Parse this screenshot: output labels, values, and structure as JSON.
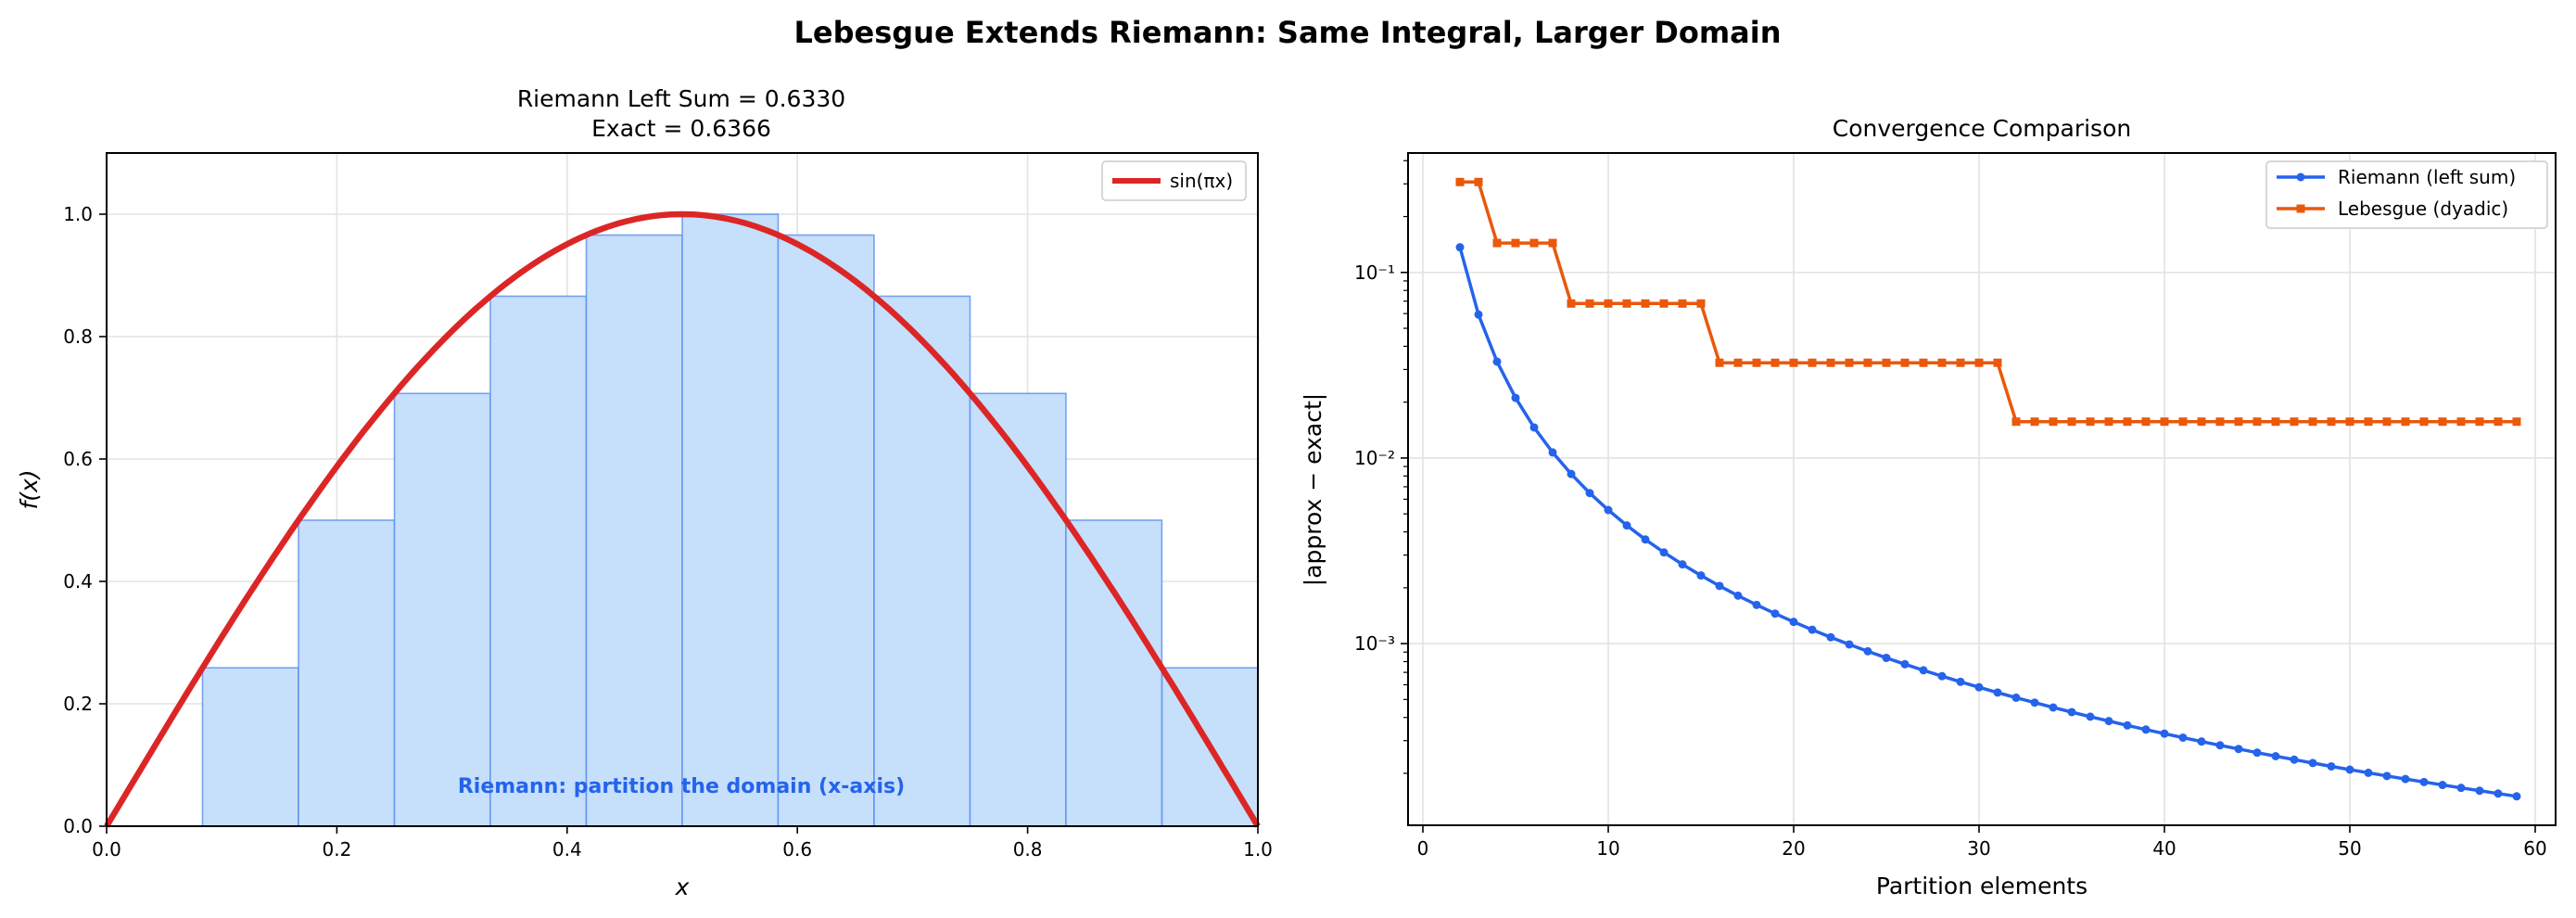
{
  "suptitle": "Lebesgue Extends Riemann: Same Integral, Larger Domain",
  "chart_data": [
    {
      "type": "bar",
      "title_line1": "Riemann Left Sum $=0.6330$",
      "title_line1_text": "Riemann Left Sum  = 0.6330",
      "title_line2_text": "Exact  = 0.6366",
      "xlabel": "x",
      "ylabel": "f(x)",
      "xlim": [
        0,
        1
      ],
      "ylim": [
        0,
        1.1
      ],
      "grid": true,
      "xticks": [
        "0.0",
        "0.2",
        "0.4",
        "0.6",
        "0.8",
        "1.0"
      ],
      "yticks": [
        "0.0",
        "0.2",
        "0.4",
        "0.6",
        "0.8",
        "1.0"
      ],
      "bars": {
        "left_edges": [
          0,
          0.0833,
          0.1667,
          0.25,
          0.3333,
          0.4167,
          0.5,
          0.5833,
          0.6667,
          0.75,
          0.8333,
          0.9167
        ],
        "width": 0.0833,
        "heights": [
          0,
          0.2588,
          0.5,
          0.7071,
          0.866,
          0.9659,
          1.0,
          0.9659,
          0.866,
          0.7071,
          0.5,
          0.2588
        ],
        "fill": "#c6dffa",
        "edge": "#5b8def"
      },
      "curve": {
        "name": "sin(πx)",
        "function": "sin(pi*x)",
        "color": "#dc2626"
      },
      "legend_position": "top-right",
      "annotation": "Riemann: partition the domain (x-axis)",
      "annotation_color": "#2563eb"
    },
    {
      "type": "line",
      "title": "Convergence Comparison",
      "xlabel": "Partition elements",
      "ylabel": "|approx − exact|",
      "xscale": "linear",
      "yscale": "log",
      "xlim": [
        -0.8,
        61.1
      ],
      "ylim": [
        0.000105,
        0.44
      ],
      "grid": true,
      "xticks": [
        0,
        10,
        20,
        30,
        40,
        50,
        60
      ],
      "yticks": [
        {
          "value": 0.1,
          "label": "10⁻¹"
        },
        {
          "value": 0.01,
          "label": "10⁻²"
        },
        {
          "value": 0.001,
          "label": "10⁻³"
        }
      ],
      "legend_position": "top-right",
      "x": [
        2,
        3,
        4,
        5,
        6,
        7,
        8,
        9,
        10,
        11,
        12,
        13,
        14,
        15,
        16,
        17,
        18,
        19,
        20,
        21,
        22,
        23,
        24,
        25,
        26,
        27,
        28,
        29,
        30,
        31,
        32,
        33,
        34,
        35,
        36,
        37,
        38,
        39,
        40,
        41,
        42,
        43,
        44,
        45,
        46,
        47,
        48,
        49,
        50,
        51,
        52,
        53,
        54,
        55,
        56,
        57,
        58,
        59
      ],
      "series": [
        {
          "name": "Riemann (left sum)",
          "color": "#2563eb",
          "marker": "circle",
          "values": [
            0.1366,
            0.05927,
            0.03307,
            0.02108,
            0.01461,
            0.01072,
            0.008202,
            0.006477,
            0.005245,
            0.004333,
            0.00364,
            0.003101,
            0.002673,
            0.002329,
            0.002046,
            0.001813,
            0.001617,
            0.001451,
            0.001309,
            0.001188,
            0.001082,
            0.0009898,
            0.0009091,
            0.0008378,
            0.0007746,
            0.0007183,
            0.0006679,
            0.0006226,
            0.0005818,
            0.0005449,
            0.0005113,
            0.0004808,
            0.0004529,
            0.0004274,
            0.000404,
            0.0003825,
            0.0003626,
            0.0003442,
            0.0003273,
            0.0003115,
            0.0002968,
            0.0002832,
            0.0002705,
            0.0002586,
            0.0002474,
            0.000237,
            0.0002273,
            0.0002181,
            0.0002094,
            0.0002013,
            0.0001936,
            0.0001864,
            0.0001796,
            0.0001731,
            0.000167,
            0.0001612,
            0.0001556,
            0.0001504
          ]
        },
        {
          "name": "Lebesgue (dyadic)",
          "color": "#ea580c",
          "marker": "square",
          "values": [
            0.307,
            0.307,
            0.144,
            0.144,
            0.144,
            0.144,
            0.068,
            0.068,
            0.068,
            0.068,
            0.068,
            0.068,
            0.068,
            0.068,
            0.0326,
            0.0326,
            0.0326,
            0.0326,
            0.0326,
            0.0326,
            0.0326,
            0.0326,
            0.0326,
            0.0326,
            0.0326,
            0.0326,
            0.0326,
            0.0326,
            0.0326,
            0.0326,
            0.0157,
            0.0157,
            0.0157,
            0.0157,
            0.0157,
            0.0157,
            0.0157,
            0.0157,
            0.0157,
            0.0157,
            0.0157,
            0.0157,
            0.0157,
            0.0157,
            0.0157,
            0.0157,
            0.0157,
            0.0157,
            0.0157,
            0.0157,
            0.0157,
            0.0157,
            0.0157,
            0.0157,
            0.0157,
            0.0157,
            0.0157,
            0.0157
          ]
        }
      ]
    }
  ]
}
